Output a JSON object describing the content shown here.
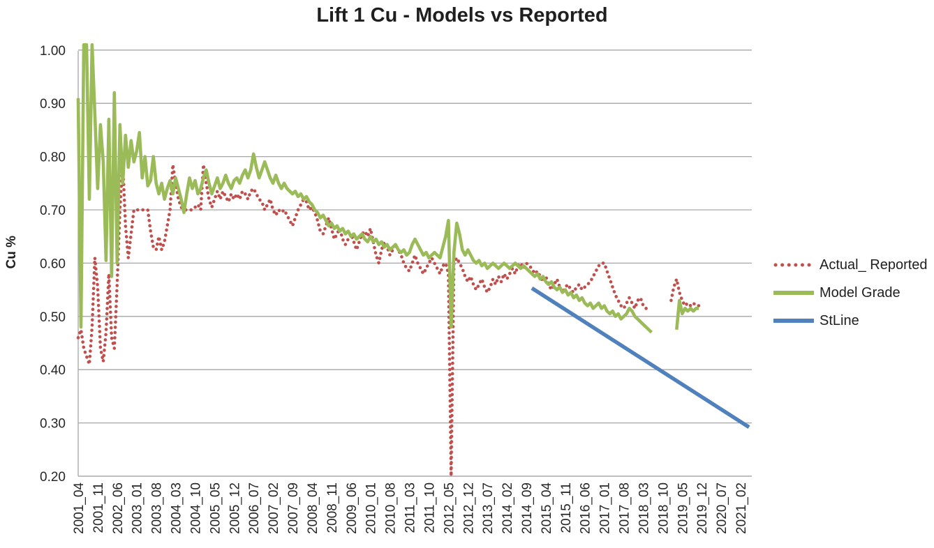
{
  "chart_data": {
    "type": "line",
    "title": "Lift 1 Cu - Models vs Reported",
    "ylabel": "Cu %",
    "xlabel": "",
    "ylim": [
      0.2,
      1.0
    ],
    "grid": "horizontal",
    "legend_position": "right",
    "y_tick_labels": [
      "1.00",
      "0.90",
      "0.80",
      "0.70",
      "0.60",
      "0.50",
      "0.40",
      "0.30",
      "0.20"
    ],
    "x_tick_labels": [
      "2001_04",
      "2001_11",
      "2002_06",
      "2003_01",
      "2003_08",
      "2004_03",
      "2004_10",
      "2005_05",
      "2005_12",
      "2006_07",
      "2007_02",
      "2007_09",
      "2008_04",
      "2008_11",
      "2009_06",
      "2010_01",
      "2010_08",
      "2011_03",
      "2011_10",
      "2012_05",
      "2012_12",
      "2013_07",
      "2014_02",
      "2014_09",
      "2015_04",
      "2015_11",
      "2016_06",
      "2017_01",
      "2017_08",
      "2018_03",
      "2018_10",
      "2019_05",
      "2019_12",
      "2020_07",
      "2021_02"
    ],
    "x_months_per_tick": 7,
    "x_start_label": "2001_04",
    "colors": {
      "actual_reported": "#C0504D",
      "model_grade": "#9BBB59",
      "stline": "#4F81BD",
      "gridline": "#A6A6A6",
      "axis_text": "#262626"
    },
    "series": [
      {
        "name": "Actual_ Reported",
        "color": "#C0504D",
        "style": "dotted",
        "start_month": "2001_04",
        "values": [
          0.46,
          0.475,
          0.44,
          0.425,
          0.41,
          0.48,
          0.61,
          0.555,
          0.44,
          0.415,
          0.47,
          0.58,
          0.46,
          0.44,
          0.56,
          0.7,
          0.79,
          0.67,
          0.61,
          0.655,
          0.7,
          0.7,
          0.7,
          0.7,
          0.7,
          0.7,
          0.66,
          0.63,
          0.625,
          0.65,
          0.625,
          0.64,
          0.67,
          0.7,
          0.785,
          0.75,
          0.72,
          0.705,
          0.7,
          0.7,
          0.7,
          0.7,
          0.705,
          0.71,
          0.7,
          0.785,
          0.75,
          0.72,
          0.705,
          0.72,
          0.735,
          0.72,
          0.735,
          0.725,
          0.715,
          0.73,
          0.72,
          0.73,
          0.72,
          0.735,
          0.73,
          0.72,
          0.735,
          0.74,
          0.73,
          0.72,
          0.715,
          0.7,
          0.71,
          0.72,
          0.7,
          0.69,
          0.7,
          0.695,
          0.7,
          0.69,
          0.68,
          0.67,
          0.685,
          0.7,
          0.71,
          0.72,
          0.715,
          0.7,
          0.705,
          0.695,
          0.68,
          0.66,
          0.655,
          0.67,
          0.685,
          0.665,
          0.645,
          0.655,
          0.665,
          0.645,
          0.635,
          0.645,
          0.655,
          0.64,
          0.625,
          0.64,
          0.655,
          0.66,
          0.65,
          0.665,
          0.64,
          0.615,
          0.6,
          0.625,
          0.64,
          0.63,
          0.615,
          0.625,
          0.635,
          0.625,
          0.615,
          0.6,
          0.59,
          0.585,
          0.6,
          0.615,
          0.6,
          0.59,
          0.58,
          0.59,
          0.6,
          0.61,
          0.6,
          0.59,
          0.58,
          0.595,
          0.6,
          0.58,
          0.2,
          0.6,
          0.61,
          0.6,
          0.59,
          0.575,
          0.565,
          0.575,
          0.56,
          0.55,
          0.56,
          0.57,
          0.555,
          0.545,
          0.555,
          0.57,
          0.56,
          0.575,
          0.565,
          0.58,
          0.57,
          0.58,
          0.59,
          0.58,
          0.595,
          0.6,
          0.59,
          0.6,
          0.595,
          0.59,
          0.58,
          0.585,
          0.575,
          0.565,
          0.575,
          0.56,
          0.55,
          0.56,
          0.57,
          0.555,
          0.545,
          0.555,
          0.56,
          0.55,
          0.545,
          0.555,
          0.56,
          0.55,
          0.555,
          0.56,
          0.565,
          0.575,
          0.585,
          0.595,
          0.6,
          0.6,
          0.585,
          0.57,
          0.555,
          0.54,
          0.53,
          0.52,
          0.515,
          0.525,
          0.535,
          0.525,
          0.515,
          0.53,
          0.535,
          0.52,
          0.515,
          0.51,
          null,
          null,
          null,
          null,
          null,
          null,
          null,
          0.53,
          0.555,
          0.57,
          0.545,
          0.53,
          0.52,
          0.525,
          0.52,
          0.525,
          0.52,
          0.52
        ]
      },
      {
        "name": "Model Grade",
        "color": "#9BBB59",
        "style": "solid",
        "start_month": "2001_04",
        "values": [
          0.91,
          0.48,
          1.01,
          1.01,
          0.72,
          1.01,
          0.88,
          0.74,
          0.86,
          0.79,
          0.605,
          0.87,
          0.575,
          0.92,
          0.6,
          0.86,
          0.75,
          0.84,
          0.78,
          0.83,
          0.79,
          0.81,
          0.845,
          0.76,
          0.8,
          0.745,
          0.755,
          0.8,
          0.75,
          0.73,
          0.75,
          0.72,
          0.74,
          0.755,
          0.73,
          0.76,
          0.74,
          0.72,
          0.695,
          0.73,
          0.76,
          0.74,
          0.755,
          0.73,
          0.74,
          0.76,
          0.775,
          0.75,
          0.73,
          0.745,
          0.76,
          0.74,
          0.75,
          0.765,
          0.75,
          0.74,
          0.755,
          0.76,
          0.75,
          0.765,
          0.775,
          0.76,
          0.775,
          0.805,
          0.78,
          0.76,
          0.775,
          0.79,
          0.775,
          0.76,
          0.75,
          0.765,
          0.75,
          0.74,
          0.75,
          0.74,
          0.735,
          0.73,
          0.735,
          0.725,
          0.73,
          0.72,
          0.725,
          0.715,
          0.71,
          0.7,
          0.695,
          0.685,
          0.69,
          0.68,
          0.67,
          0.675,
          0.665,
          0.67,
          0.66,
          0.665,
          0.655,
          0.66,
          0.65,
          0.655,
          0.645,
          0.65,
          0.655,
          0.645,
          0.64,
          0.65,
          0.64,
          0.645,
          0.635,
          0.64,
          0.63,
          0.635,
          0.625,
          0.63,
          0.635,
          0.625,
          0.62,
          0.625,
          0.615,
          0.62,
          0.635,
          0.645,
          0.635,
          0.625,
          0.615,
          0.62,
          0.61,
          0.615,
          0.62,
          0.615,
          0.61,
          0.63,
          0.65,
          0.68,
          0.48,
          0.62,
          0.675,
          0.655,
          0.625,
          0.615,
          0.625,
          0.615,
          0.605,
          0.6,
          0.605,
          0.595,
          0.6,
          0.59,
          0.595,
          0.6,
          0.595,
          0.59,
          0.595,
          0.6,
          0.595,
          0.59,
          0.595,
          0.6,
          0.595,
          0.59,
          0.595,
          0.59,
          0.585,
          0.58,
          0.575,
          0.58,
          0.57,
          0.575,
          0.565,
          0.56,
          0.565,
          0.555,
          0.55,
          0.555,
          0.545,
          0.55,
          0.54,
          0.545,
          0.535,
          0.54,
          0.53,
          0.535,
          0.525,
          0.52,
          0.525,
          0.515,
          0.52,
          0.525,
          0.515,
          0.52,
          0.51,
          0.505,
          0.51,
          0.5,
          0.505,
          0.495,
          0.5,
          0.505,
          0.515,
          0.51,
          0.5,
          0.495,
          0.49,
          0.485,
          0.48,
          0.475,
          0.47,
          null,
          null,
          null,
          null,
          null,
          null,
          null,
          null,
          0.475,
          0.53,
          0.505,
          0.515,
          0.51,
          0.515,
          0.51,
          0.515,
          0.515
        ]
      },
      {
        "name": "StLine",
        "color": "#4F81BD",
        "style": "solid",
        "points_month_value": [
          [
            163,
            0.553
          ],
          [
            241,
            0.292
          ]
        ]
      }
    ]
  }
}
